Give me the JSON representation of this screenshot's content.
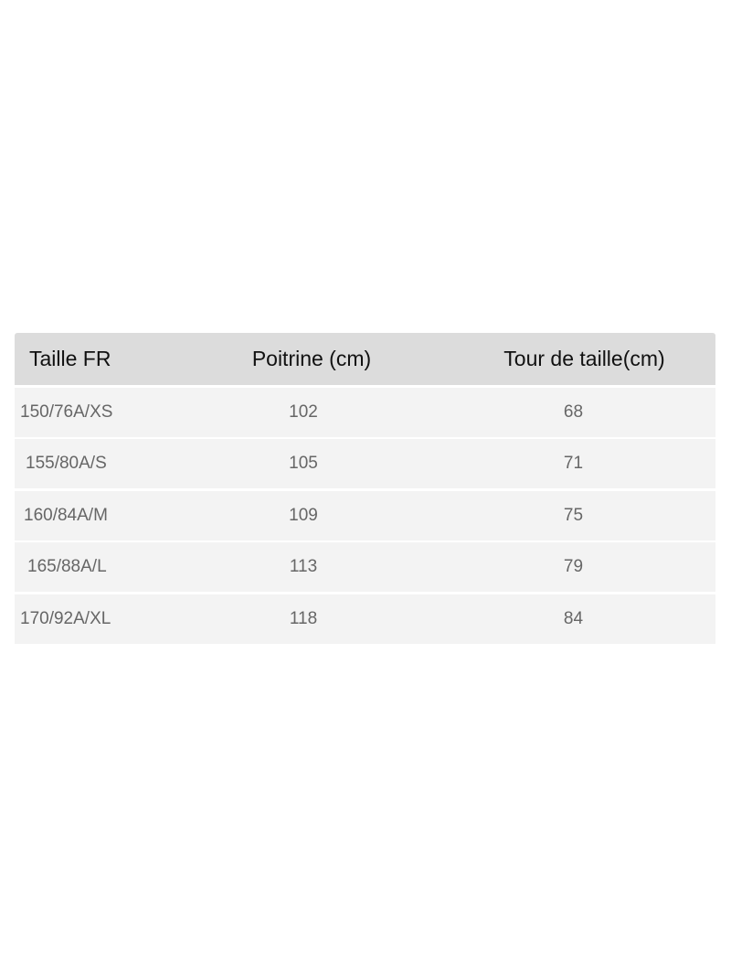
{
  "table": {
    "headers": [
      "Taille FR",
      "Poitrine (cm)",
      "Tour de taille(cm)"
    ],
    "rows": [
      [
        "150/76A/XS",
        "102",
        "68"
      ],
      [
        "155/80A/S",
        "105",
        "71"
      ],
      [
        "160/84A/M",
        "109",
        "75"
      ],
      [
        "165/88A/L",
        "113",
        "79"
      ],
      [
        "170/92A/XL",
        "118",
        "84"
      ]
    ]
  }
}
